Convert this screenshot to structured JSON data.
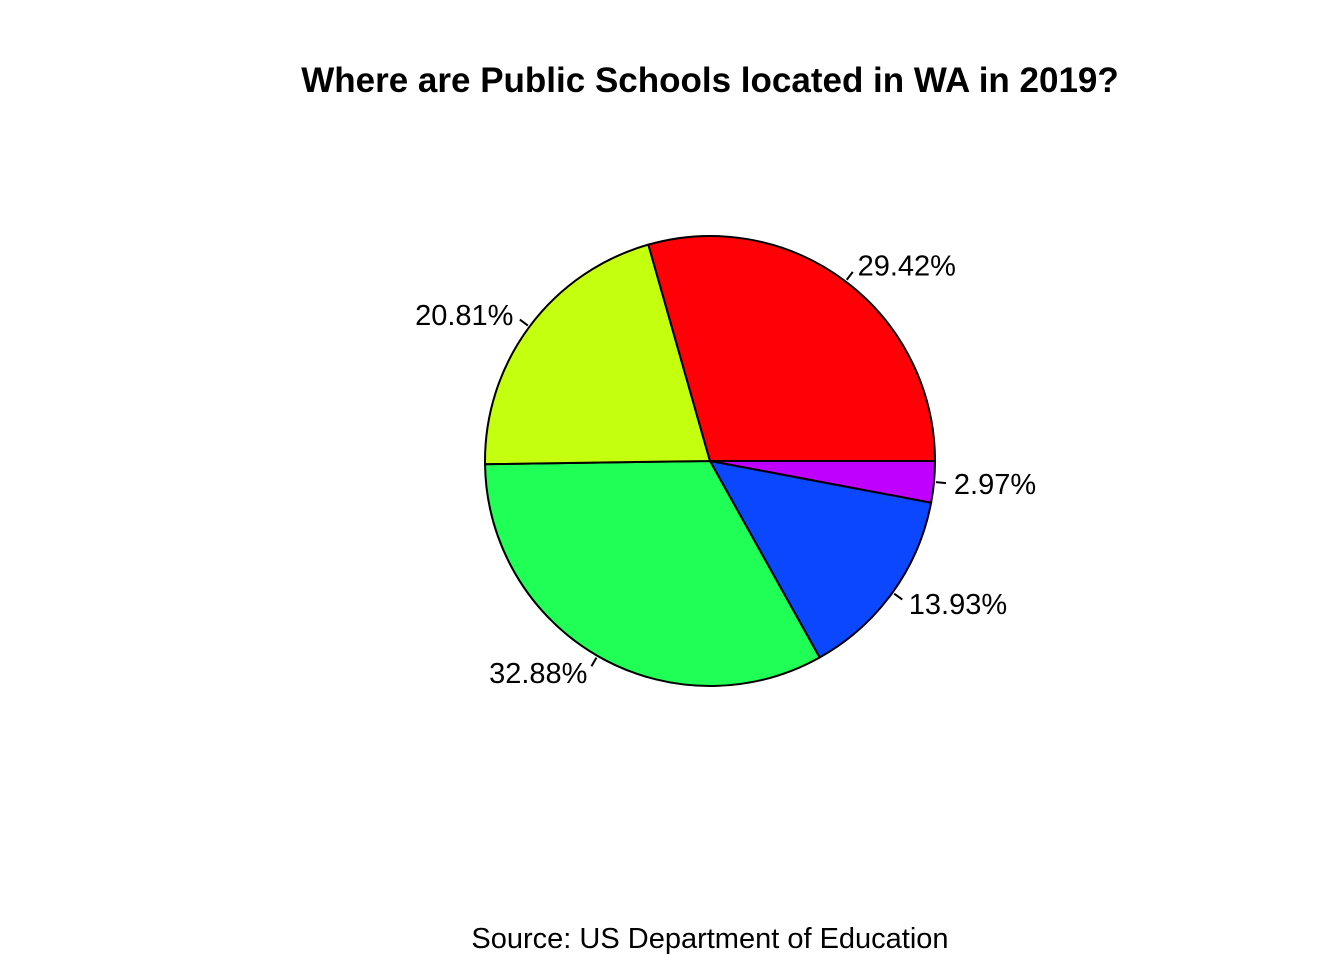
{
  "chart_data": {
    "type": "pie",
    "title": "Where are Public Schools located in WA in 2019?",
    "source": "Source: US Department of Education",
    "slices": [
      {
        "value": 2.97,
        "label": "2.97%",
        "color": "#C000FF"
      },
      {
        "value": 13.93,
        "label": "13.93%",
        "color": "#0A47FF"
      },
      {
        "value": 32.88,
        "label": "32.88%",
        "color": "#20FF55"
      },
      {
        "value": 20.81,
        "label": "20.81%",
        "color": "#C3FF0E"
      },
      {
        "value": 29.42,
        "label": "29.42%",
        "color": "#FF0006"
      }
    ],
    "direction": "clockwise",
    "start": "3 o'clock",
    "legend": "none"
  }
}
